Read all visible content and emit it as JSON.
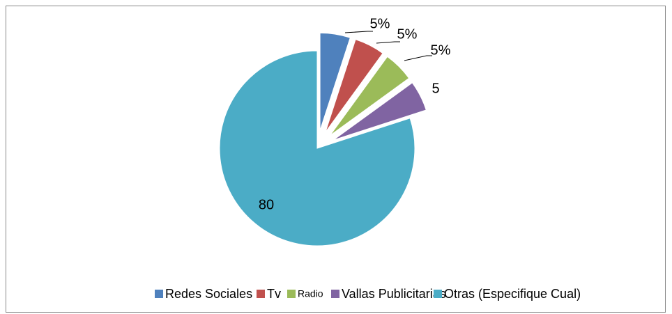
{
  "chart_data": {
    "type": "pie",
    "categories": [
      "Redes Sociales",
      "Tv",
      "Radio",
      "Vallas Publicitarias",
      "Otras (Especifique Cual)"
    ],
    "values": [
      5,
      5,
      5,
      5,
      80
    ],
    "value_labels": [
      "5%",
      "5%",
      "5%",
      "5",
      "80"
    ],
    "colors": [
      "#4f81bd",
      "#c0504d",
      "#9bbb59",
      "#8064a2",
      "#4bacc6"
    ],
    "legend": "bottom"
  }
}
